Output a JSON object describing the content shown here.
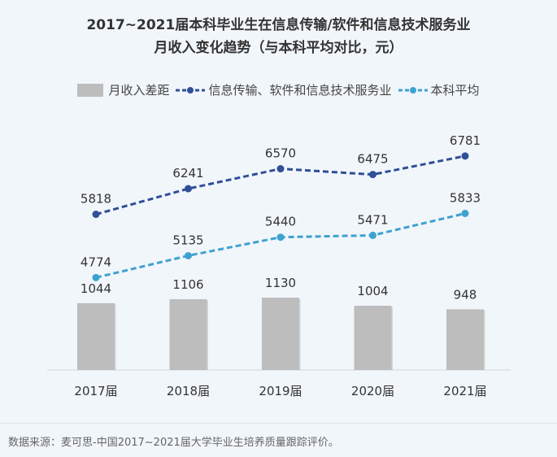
{
  "title_line1": "2017~2021届本科毕业生在信息传输/软件和信息技术服务业",
  "title_line2": "月收入变化趋势（与本科平均对比，元）",
  "source": "数据来源：麦可思-中国2017~2021届大学毕业生培养质量跟踪评价。",
  "colors": {
    "bar": "#bdbdbd",
    "industry": "#2f4f96",
    "average": "#3ea2cf"
  },
  "chart_data": {
    "type": "bar+line",
    "categories": [
      "2017届",
      "2018届",
      "2019届",
      "2020届",
      "2021届"
    ],
    "series": [
      {
        "name": "月收入差距",
        "type": "bar",
        "values": [
          1044,
          1106,
          1130,
          1004,
          948
        ]
      },
      {
        "name": "信息传输、软件和信息技术服务业",
        "type": "line",
        "values": [
          5818,
          6241,
          6570,
          6475,
          6781
        ]
      },
      {
        "name": "本科平均",
        "type": "line",
        "values": [
          4774,
          5135,
          5440,
          5471,
          5833
        ]
      }
    ],
    "legend_position": "top",
    "grid": false
  }
}
